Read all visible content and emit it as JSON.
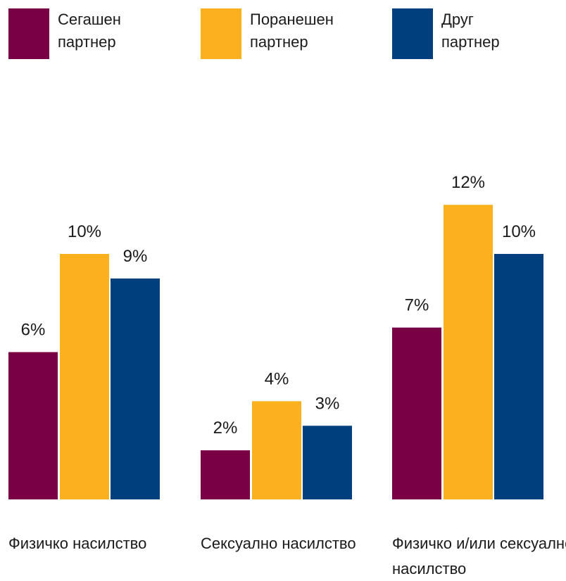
{
  "chart_data": {
    "type": "bar",
    "categories": [
      [
        "Физичко насилство"
      ],
      [
        "Сексуално насилство"
      ],
      [
        "Физичко и/или сексуално",
        "насилство"
      ]
    ],
    "series": [
      {
        "name": [
          "Сегашен",
          "партнер"
        ],
        "color": "#7a0045",
        "values": [
          6,
          2,
          7
        ],
        "labels": [
          "6%",
          "2%",
          "7%"
        ]
      },
      {
        "name": [
          "Поранешен",
          "партнер"
        ],
        "color": "#fbb01d",
        "values": [
          10,
          4,
          12
        ],
        "labels": [
          "10%",
          "4%",
          "12%"
        ]
      },
      {
        "name": [
          "Друг",
          "партнер"
        ],
        "color": "#003f7d",
        "values": [
          9,
          3,
          10
        ],
        "labels": [
          "9%",
          "3%",
          "10%"
        ]
      }
    ],
    "ylim": [
      0,
      12
    ],
    "unit": "%",
    "grid": false,
    "legend_position": "top"
  }
}
